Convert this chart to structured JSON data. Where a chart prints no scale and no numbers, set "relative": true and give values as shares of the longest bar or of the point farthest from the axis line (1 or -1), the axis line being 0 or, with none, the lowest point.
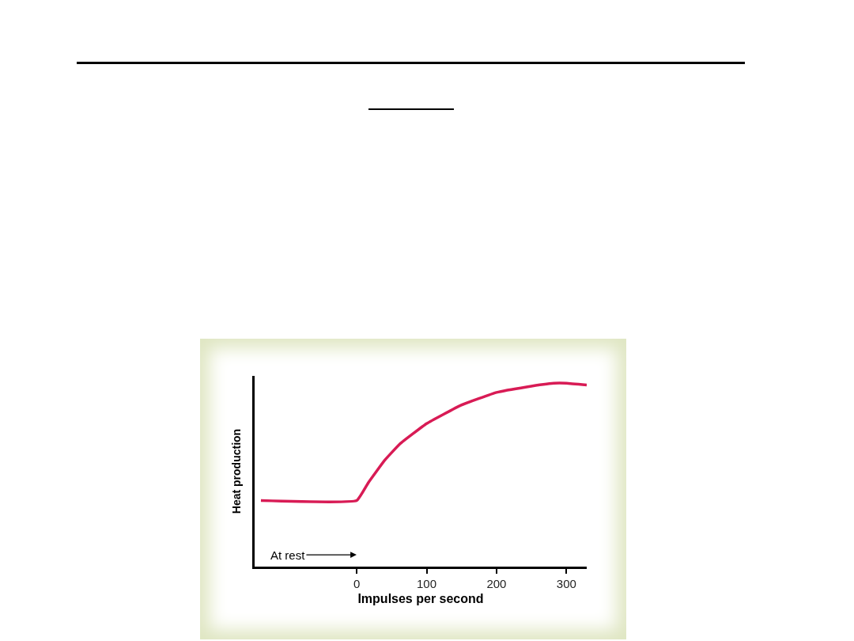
{
  "chart_data": {
    "type": "line",
    "relative": true,
    "xlabel": "Impulses per second",
    "ylabel": "Heat production",
    "x": [
      -137,
      0,
      17,
      40,
      62,
      100,
      149,
      200,
      243,
      282,
      300,
      329
    ],
    "series": [
      {
        "color": "#d81b55",
        "values": [
          0.36,
          0.36,
          0.46,
          0.58,
          0.67,
          0.78,
          0.88,
          0.95,
          0.98,
          1.0,
          1.0,
          0.99
        ]
      }
    ],
    "xlim": [
      -146,
      329
    ],
    "xticks": [
      0,
      100,
      200,
      300
    ],
    "tick_labels": "x",
    "marker": "none",
    "line_style": "solid",
    "annotations": [
      "At rest"
    ]
  }
}
